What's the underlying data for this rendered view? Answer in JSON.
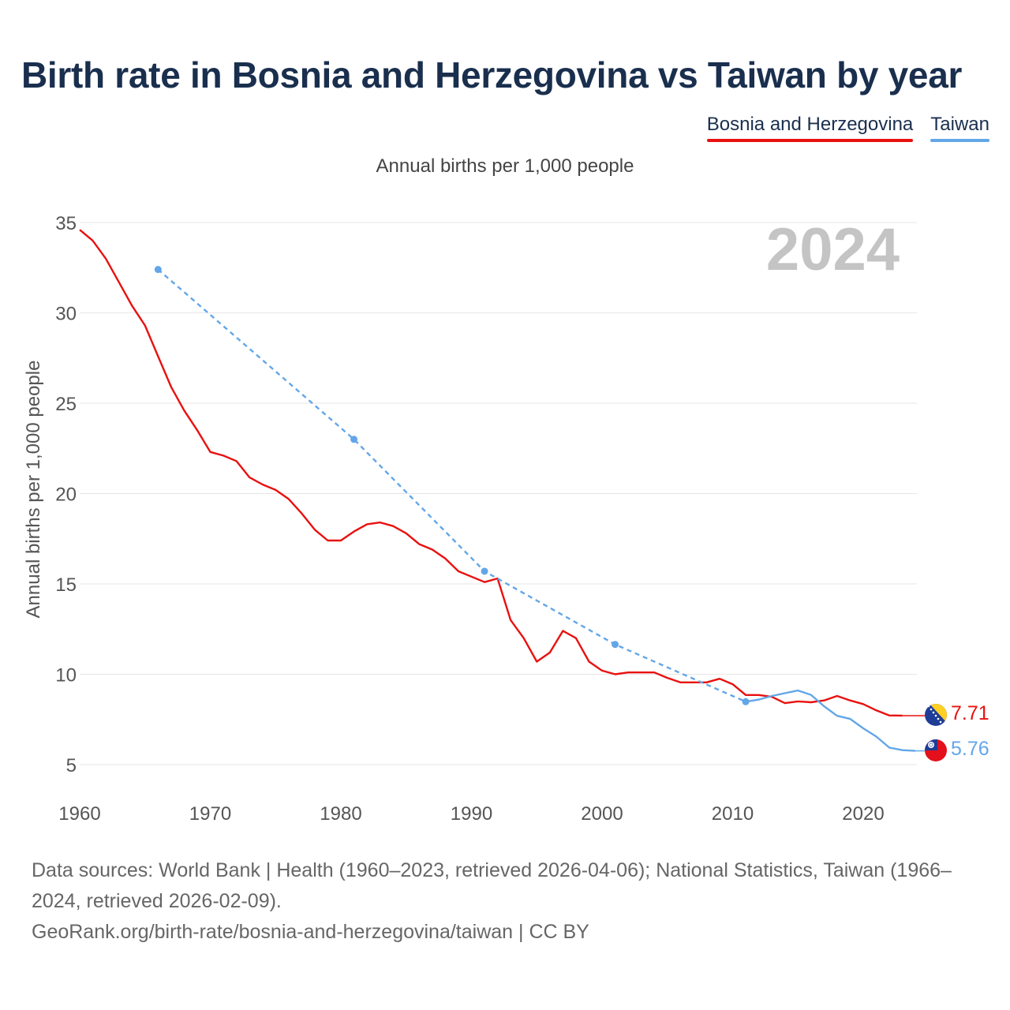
{
  "title": "Birth rate in Bosnia and Herzegovina vs Taiwan by year",
  "subtitle": "Annual births per 1,000 people",
  "legend": [
    {
      "label": "Bosnia and Herzegovina",
      "color": "#e8110f"
    },
    {
      "label": "Taiwan",
      "color": "#63a6e8"
    }
  ],
  "chart_data": {
    "type": "line",
    "title": "Birth rate in Bosnia and Herzegovina vs Taiwan by year",
    "ylabel": "Annual births per 1,000 people",
    "xlabel": "",
    "xlim": [
      1960,
      2024
    ],
    "ylim": [
      3,
      35.5
    ],
    "x_ticks": [
      1960,
      1970,
      1980,
      1990,
      2000,
      2010,
      2020
    ],
    "y_ticks": [
      5,
      10,
      15,
      20,
      25,
      30,
      35
    ],
    "year_watermark": "2024",
    "series": [
      {
        "name": "Bosnia and Herzegovina",
        "color": "#e8110f",
        "end_label": "7.71",
        "end_value": 7.71,
        "points": [
          [
            1960,
            34.6
          ],
          [
            1961,
            34.0
          ],
          [
            1962,
            33.0
          ],
          [
            1963,
            31.7
          ],
          [
            1964,
            30.4
          ],
          [
            1965,
            29.3
          ],
          [
            1966,
            27.6
          ],
          [
            1967,
            25.9
          ],
          [
            1968,
            24.6
          ],
          [
            1969,
            23.5
          ],
          [
            1970,
            22.3
          ],
          [
            1971,
            22.1
          ],
          [
            1972,
            21.8
          ],
          [
            1973,
            20.9
          ],
          [
            1974,
            20.5
          ],
          [
            1975,
            20.2
          ],
          [
            1976,
            19.7
          ],
          [
            1977,
            18.9
          ],
          [
            1978,
            18.0
          ],
          [
            1979,
            17.4
          ],
          [
            1980,
            17.4
          ],
          [
            1981,
            17.9
          ],
          [
            1982,
            18.3
          ],
          [
            1983,
            18.4
          ],
          [
            1984,
            18.2
          ],
          [
            1985,
            17.8
          ],
          [
            1986,
            17.2
          ],
          [
            1987,
            16.9
          ],
          [
            1988,
            16.4
          ],
          [
            1989,
            15.7
          ],
          [
            1990,
            15.4
          ],
          [
            1991,
            15.1
          ],
          [
            1992,
            15.3
          ],
          [
            1993,
            13.0
          ],
          [
            1994,
            12.0
          ],
          [
            1995,
            10.7
          ],
          [
            1996,
            11.2
          ],
          [
            1997,
            12.4
          ],
          [
            1998,
            12.0
          ],
          [
            1999,
            10.7
          ],
          [
            2000,
            10.2
          ],
          [
            2001,
            10.0
          ],
          [
            2002,
            10.1
          ],
          [
            2003,
            10.1
          ],
          [
            2004,
            10.1
          ],
          [
            2005,
            9.8
          ],
          [
            2006,
            9.55
          ],
          [
            2007,
            9.55
          ],
          [
            2008,
            9.55
          ],
          [
            2009,
            9.75
          ],
          [
            2010,
            9.45
          ],
          [
            2011,
            8.85
          ],
          [
            2012,
            8.85
          ],
          [
            2013,
            8.75
          ],
          [
            2014,
            8.4
          ],
          [
            2015,
            8.5
          ],
          [
            2016,
            8.45
          ],
          [
            2017,
            8.55
          ],
          [
            2018,
            8.8
          ],
          [
            2019,
            8.55
          ],
          [
            2020,
            8.35
          ],
          [
            2021,
            8.0
          ],
          [
            2022,
            7.72
          ],
          [
            2023,
            7.71
          ],
          [
            2024,
            7.71
          ]
        ]
      },
      {
        "name": "Taiwan",
        "color": "#63a6e8",
        "end_label": "5.76",
        "end_value": 5.76,
        "dashed_points": [
          [
            1966,
            32.4
          ],
          [
            1981,
            23.0
          ],
          [
            1991,
            15.7
          ],
          [
            2001,
            11.65
          ],
          [
            2011,
            8.48
          ]
        ],
        "points": [
          [
            2011,
            8.48
          ],
          [
            2012,
            8.6
          ],
          [
            2013,
            8.8
          ],
          [
            2014,
            8.95
          ],
          [
            2015,
            9.1
          ],
          [
            2016,
            8.86
          ],
          [
            2017,
            8.23
          ],
          [
            2018,
            7.7
          ],
          [
            2019,
            7.53
          ],
          [
            2020,
            7.01
          ],
          [
            2021,
            6.55
          ],
          [
            2022,
            5.94
          ],
          [
            2023,
            5.8
          ],
          [
            2024,
            5.76
          ]
        ]
      }
    ]
  },
  "footer": {
    "sources": "Data sources: World Bank | Health (1960–2023, retrieved 2026-04-06); National Statistics, Taiwan (1966–2024, retrieved 2026-02-09).",
    "link": "GeoRank.org/birth-rate/bosnia-and-herzegovina/taiwan | CC BY"
  }
}
